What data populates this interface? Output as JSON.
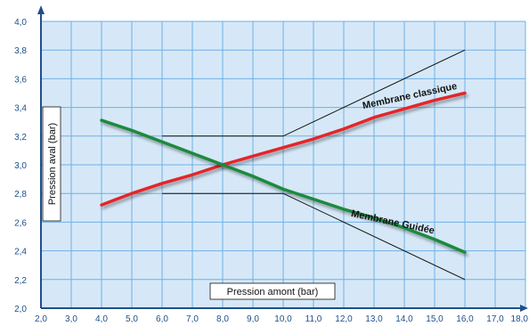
{
  "chart_data": {
    "type": "line",
    "xlabel": "Pression amont (bar)",
    "ylabel": "Pression aval (bar)",
    "xlim": [
      2.0,
      18.0
    ],
    "ylim": [
      2.0,
      4.0
    ],
    "x_ticks": [
      "2,0",
      "3,0",
      "4,0",
      "5,0",
      "6,0",
      "7,0",
      "8,0",
      "9,0",
      "10,0",
      "11,0",
      "12,0",
      "13,0",
      "14,0",
      "15,0",
      "16,0",
      "17,0",
      "18,0"
    ],
    "y_ticks": [
      "2,0",
      "2,2",
      "2,4",
      "2,6",
      "2,8",
      "3,0",
      "3,2",
      "3,4",
      "3,6",
      "3,8",
      "4,0"
    ],
    "grid": true,
    "colors": {
      "background": "#d6e8f7",
      "grid": "#6fb0e6",
      "axis": "#1f4f8b",
      "red": "#e3262c",
      "green": "#1f8a3c",
      "thin": "#111111"
    },
    "series": [
      {
        "name": "Membrane classique",
        "color": "#e3262c",
        "x": [
          4.0,
          5.0,
          6.0,
          7.0,
          8.0,
          9.0,
          10.0,
          11.0,
          12.0,
          13.0,
          14.0,
          15.0,
          16.0
        ],
        "y": [
          2.72,
          2.8,
          2.87,
          2.93,
          3.0,
          3.06,
          3.12,
          3.18,
          3.25,
          3.33,
          3.39,
          3.45,
          3.5
        ]
      },
      {
        "name": "Membrane Guidée",
        "color": "#1f8a3c",
        "x": [
          4.0,
          5.0,
          6.0,
          7.0,
          8.0,
          9.0,
          10.0,
          11.0,
          12.0,
          13.0,
          14.0,
          15.0,
          16.0
        ],
        "y": [
          3.31,
          3.24,
          3.16,
          3.08,
          3.0,
          2.92,
          2.83,
          2.76,
          2.69,
          2.63,
          2.56,
          2.48,
          2.39
        ]
      }
    ],
    "reference_lines": [
      {
        "x": [
          6.0,
          10.0,
          16.0
        ],
        "y": [
          3.2,
          3.2,
          3.8
        ]
      },
      {
        "x": [
          6.0,
          10.0,
          16.0
        ],
        "y": [
          2.8,
          2.8,
          2.2
        ]
      }
    ],
    "annotations": [
      {
        "text": "Membrane classique",
        "x": 14.2,
        "y": 3.46
      },
      {
        "text": "Membrane Guidée",
        "x": 13.6,
        "y": 2.58
      }
    ]
  }
}
